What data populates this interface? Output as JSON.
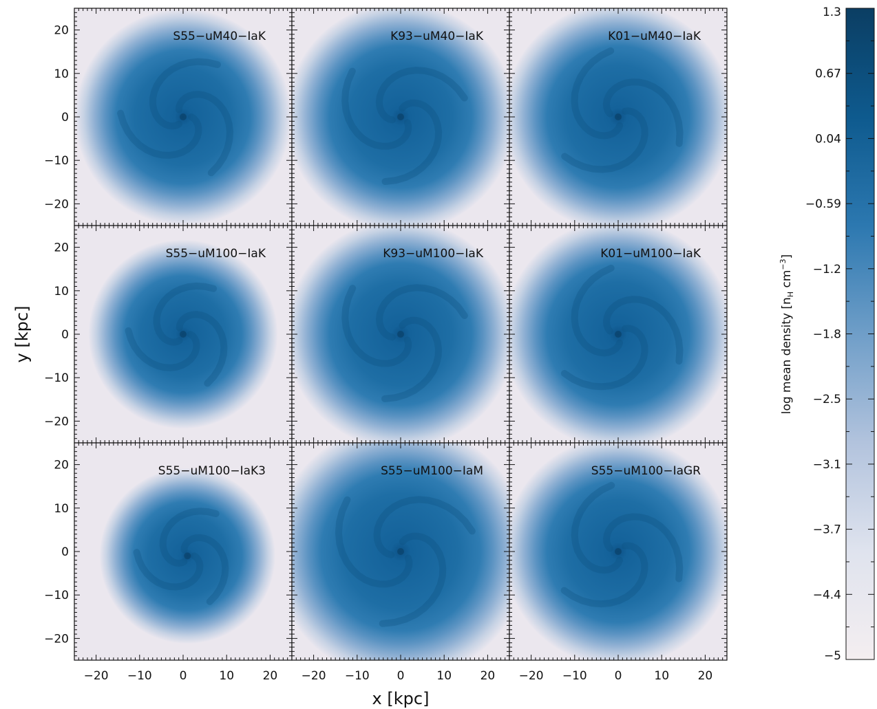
{
  "chart_data": {
    "type": "heatmap",
    "grid": {
      "rows": 3,
      "cols": 3
    },
    "xlabel": "x [kpc]",
    "ylabel": "y [kpc]",
    "xlim": [
      -25,
      25
    ],
    "ylim": [
      -25,
      25
    ],
    "x_ticks": [
      -20,
      -10,
      0,
      10,
      20
    ],
    "y_ticks": [
      20,
      10,
      0,
      -10,
      -20
    ],
    "panels": [
      {
        "label": "S55−uM40−IaK",
        "disk_radius_kpc": 16,
        "center": [
          0,
          0
        ]
      },
      {
        "label": "K93−uM40−IaK",
        "disk_radius_kpc": 17,
        "center": [
          0,
          0
        ]
      },
      {
        "label": "K01−uM40−IaK",
        "disk_radius_kpc": 17,
        "center": [
          0,
          0
        ]
      },
      {
        "label": "S55−uM100−IaK",
        "disk_radius_kpc": 14,
        "center": [
          0,
          0
        ]
      },
      {
        "label": "K93−uM100−IaK",
        "disk_radius_kpc": 17,
        "center": [
          0,
          0
        ]
      },
      {
        "label": "K01−uM100−IaK",
        "disk_radius_kpc": 17,
        "center": [
          0,
          0
        ]
      },
      {
        "label": "S55−uM100−IaK3",
        "disk_radius_kpc": 13,
        "center": [
          1,
          -1
        ]
      },
      {
        "label": "S55−uM100−IaM",
        "disk_radius_kpc": 19,
        "center": [
          0,
          0
        ]
      },
      {
        "label": "S55−uM100−IaGR",
        "disk_radius_kpc": 17,
        "center": [
          0,
          0
        ]
      }
    ],
    "colorbar": {
      "label_main": "log mean density ",
      "label_unit_n": "n",
      "label_unit_sub": "H",
      "label_unit_rest": " cm",
      "label_unit_sup": "−3",
      "ticks": [
        "1.3",
        "0.67",
        "0.04",
        "−0.59",
        "−1.2",
        "−1.8",
        "−2.5",
        "−3.1",
        "−3.7",
        "−4.4",
        "−5"
      ],
      "range": [
        -5,
        1.3
      ],
      "colors": [
        "#f4eef0",
        "#dfe3ee",
        "#b2c3dd",
        "#6f9ec8",
        "#2c78b0",
        "#0e5a8e",
        "#0b3e63"
      ]
    }
  }
}
